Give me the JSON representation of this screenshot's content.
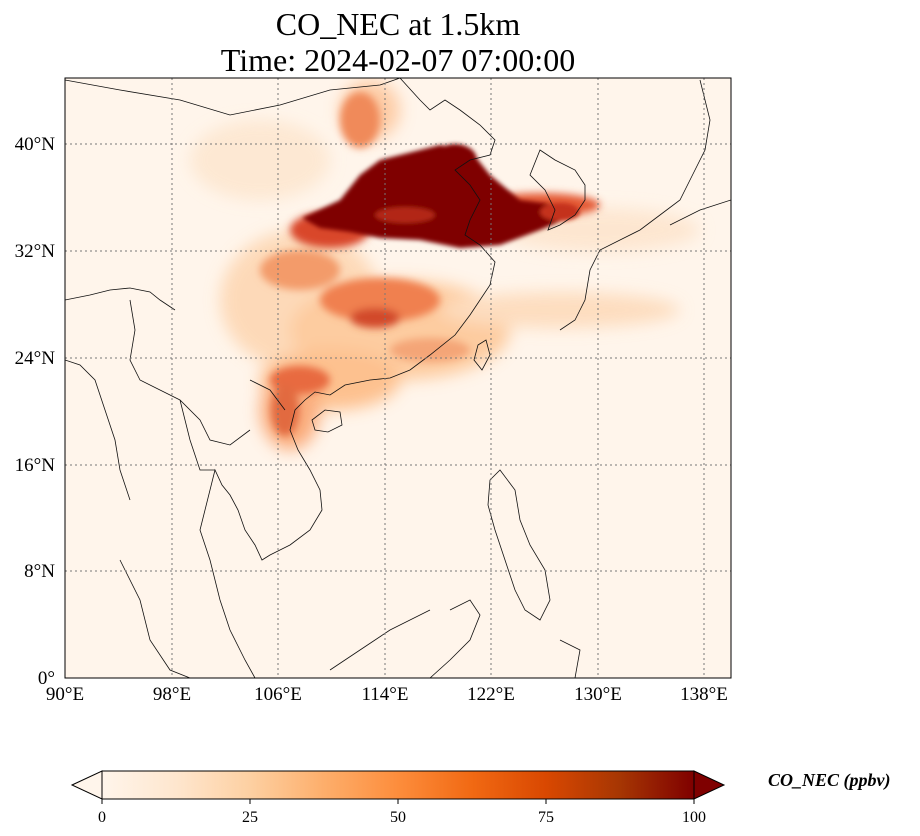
{
  "title": {
    "line1": "CO_NEC at 1.5km",
    "line2": "Time: 2024-02-07 07:00:00"
  },
  "map": {
    "region": "East and Southeast Asia",
    "lon_range": [
      90,
      140
    ],
    "lat_range": [
      0,
      45
    ],
    "gridlines": "dotted",
    "lon_ticks": [
      "90°E",
      "98°E",
      "106°E",
      "114°E",
      "122°E",
      "130°E",
      "138°E"
    ],
    "lat_ticks": [
      "0°",
      "8°N",
      "16°N",
      "24°N",
      "32°N",
      "40°N"
    ]
  },
  "colorbar": {
    "label": "CO_NEC (ppbv)",
    "ticks": [
      "0",
      "25",
      "50",
      "75",
      "100"
    ],
    "range": [
      0,
      100
    ],
    "extend": "both",
    "colormap": [
      "#fff5eb",
      "#fee6ce",
      "#fdd0a2",
      "#fdae6b",
      "#fd8d3c",
      "#f16913",
      "#d94801",
      "#a63603",
      "#7f2704"
    ]
  },
  "colors": {
    "high": "#7f0000",
    "mid": "#d7301f",
    "low": "#fdd49e",
    "background": "#fff5eb",
    "coast": "#000000"
  }
}
